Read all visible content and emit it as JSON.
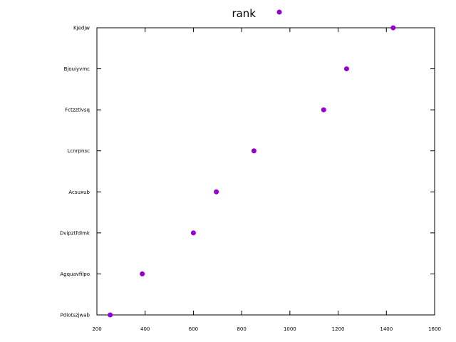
{
  "chart_data": {
    "type": "scatter",
    "title": "",
    "xlabel": "",
    "ylabel": "",
    "xlim": [
      200,
      1600
    ],
    "x_ticks": [
      "200",
      "400",
      "600",
      "800",
      "1000",
      "1200",
      "1400",
      "1600"
    ],
    "categories": [
      "Pdiotszjwab",
      "Agquavfilpo",
      "Dvipztfdlmk",
      "Acsuxub",
      "Lcnrpnsc",
      "Fctzztlvsq",
      "Bjouiyvmc",
      "Kjedjw"
    ],
    "series": [
      {
        "name": "rank",
        "color": "#9400d3",
        "x": [
          255,
          388,
          600,
          695,
          851,
          1140,
          1235,
          1428
        ],
        "y": [
          "Pdiotszjwab",
          "Agquavfilpo",
          "Dvipztfdlmk",
          "Acsuxub",
          "Lcnrpnsc",
          "Fctzztlvsq",
          "Bjouiyvmc",
          "Kjedjw"
        ]
      }
    ],
    "legend_position": "top-center",
    "grid": false
  }
}
